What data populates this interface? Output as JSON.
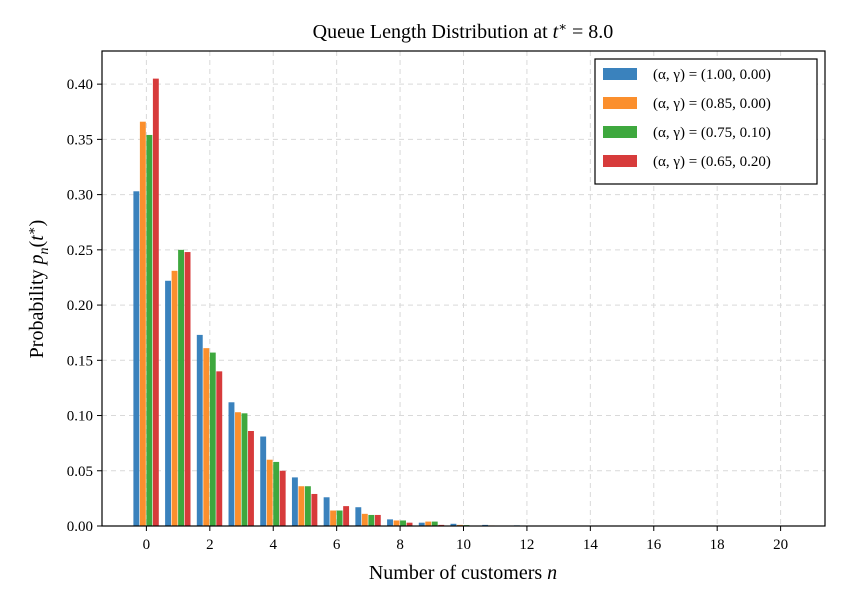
{
  "chart_data": {
    "type": "bar",
    "title": "Queue Length Distribution at t* = 8.0",
    "xlabel": "Number of customers n",
    "ylabel": "Probability p_n(t*)",
    "x": [
      0,
      1,
      2,
      3,
      4,
      5,
      6,
      7,
      8,
      9,
      10,
      11,
      12,
      13,
      14,
      15,
      16,
      17,
      18,
      19,
      20
    ],
    "xticks": [
      0,
      2,
      4,
      6,
      8,
      10,
      12,
      14,
      16,
      18,
      20
    ],
    "xlim": [
      -1.4,
      21.4
    ],
    "ylim": [
      0,
      0.43
    ],
    "yticks": [
      0.0,
      0.05,
      0.1,
      0.15,
      0.2,
      0.25,
      0.3,
      0.35,
      0.4
    ],
    "ytick_labels": [
      "0.00",
      "0.05",
      "0.10",
      "0.15",
      "0.20",
      "0.25",
      "0.30",
      "0.35",
      "0.40"
    ],
    "grid": true,
    "legend_position": "top-right",
    "series": [
      {
        "name": "(α, γ) = (1.00, 0.00)",
        "color": "#3a82bd",
        "values": [
          0.303,
          0.222,
          0.173,
          0.112,
          0.081,
          0.044,
          0.026,
          0.017,
          0.006,
          0.003,
          0.002,
          0.001,
          0.0006,
          0.0003,
          0.0002,
          0.0001,
          0,
          0,
          0,
          0,
          0
        ]
      },
      {
        "name": "(α, γ) = (0.85, 0.00)",
        "color": "#fb8f2d",
        "values": [
          0.366,
          0.231,
          0.161,
          0.103,
          0.06,
          0.036,
          0.014,
          0.011,
          0.005,
          0.004,
          0.001,
          0.0005,
          0.0002,
          0.0001,
          0,
          0,
          0,
          0,
          0,
          0,
          0
        ]
      },
      {
        "name": "(α, γ) = (0.75, 0.10)",
        "color": "#3ea83e",
        "values": [
          0.354,
          0.25,
          0.157,
          0.102,
          0.058,
          0.036,
          0.014,
          0.01,
          0.005,
          0.004,
          0.0008,
          0.0004,
          0.0002,
          0.0001,
          0,
          0,
          0,
          0,
          0,
          0,
          0
        ]
      },
      {
        "name": "(α, γ) = (0.65, 0.20)",
        "color": "#d73b3b",
        "values": [
          0.405,
          0.248,
          0.14,
          0.086,
          0.05,
          0.029,
          0.018,
          0.01,
          0.003,
          0.001,
          0.0003,
          0.0001,
          0,
          0,
          0,
          0,
          0,
          0,
          0,
          0,
          0
        ]
      }
    ]
  }
}
